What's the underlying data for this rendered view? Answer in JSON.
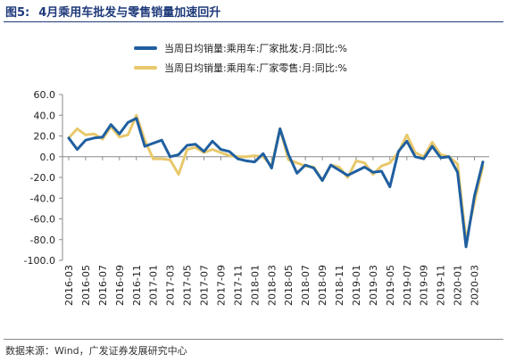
{
  "figure": {
    "number": "图5:",
    "title": "4月乘用车批发与零售销量加速回升",
    "source": "数据来源：Wind，广发证券发展研究中心"
  },
  "colors": {
    "title": "#1f3a7a",
    "series_wholesale": "#1f5fa0",
    "series_retail": "#e8c86b",
    "axis": "#888888"
  },
  "chart_data": {
    "type": "line",
    "ylim": [
      -100,
      60
    ],
    "yticks": [
      60,
      40,
      20,
      0,
      -20,
      -40,
      -60,
      -80,
      -100
    ],
    "ytick_labels": [
      "60.0",
      "40.0",
      "20.0",
      "0.0",
      "-20.0",
      "-40.0",
      "-60.0",
      "-80.0",
      "-100.0"
    ],
    "grid": false,
    "legend_position": "top-left",
    "x_labels": [
      "2016-03",
      "2016-05",
      "2016-07",
      "2016-09",
      "2016-11",
      "2017-01",
      "2017-03",
      "2017-05",
      "2017-07",
      "2017-09",
      "2017-11",
      "2018-01",
      "2018-03",
      "2018-05",
      "2018-07",
      "2018-09",
      "2018-11",
      "2019-01",
      "2019-03",
      "2019-05",
      "2019-07",
      "2019-09",
      "2019-11",
      "2020-01",
      "2020-03"
    ],
    "x": [
      "2016-03",
      "2016-04",
      "2016-05",
      "2016-06",
      "2016-07",
      "2016-08",
      "2016-09",
      "2016-10",
      "2016-11",
      "2016-12",
      "2017-01",
      "2017-02",
      "2017-03",
      "2017-04",
      "2017-05",
      "2017-06",
      "2017-07",
      "2017-08",
      "2017-09",
      "2017-10",
      "2017-11",
      "2017-12",
      "2018-01",
      "2018-02",
      "2018-03",
      "2018-04",
      "2018-05",
      "2018-06",
      "2018-07",
      "2018-08",
      "2018-09",
      "2018-10",
      "2018-11",
      "2018-12",
      "2019-01",
      "2019-02",
      "2019-03",
      "2019-04",
      "2019-05",
      "2019-06",
      "2019-07",
      "2019-08",
      "2019-09",
      "2019-10",
      "2019-11",
      "2019-12",
      "2020-01",
      "2020-02",
      "2020-03",
      "2020-04"
    ],
    "series": [
      {
        "name": "当周日均销量:乘用车:厂家批发:月:同比:%",
        "values": [
          18,
          7,
          16,
          18,
          19,
          31,
          22,
          33,
          37,
          10,
          13,
          16,
          0,
          2,
          11,
          12,
          5,
          15,
          7,
          5,
          -2,
          -4,
          -5,
          3,
          -11,
          27,
          2,
          -16,
          -8,
          -11,
          -23,
          -8,
          -13,
          -18,
          -14,
          -10,
          -15,
          -14,
          -29,
          5,
          15,
          0,
          -2,
          10,
          -1,
          0,
          -15,
          -87,
          -38,
          -5
        ]
      },
      {
        "name": "当周日均销量:乘用车:厂家零售:月:同比:%",
        "values": [
          18,
          27,
          21,
          22,
          17,
          29,
          19,
          21,
          40,
          16,
          -2,
          -2,
          -3,
          -17,
          7,
          9,
          4,
          7,
          4,
          1,
          0,
          0,
          1,
          0,
          -9,
          27,
          -3,
          -6,
          -9,
          -10,
          -23,
          -8,
          -10,
          -20,
          -4,
          -6,
          -17,
          -9,
          -6,
          4,
          21,
          4,
          0,
          14,
          2,
          0,
          -7,
          -81,
          -44,
          -9
        ]
      }
    ]
  }
}
